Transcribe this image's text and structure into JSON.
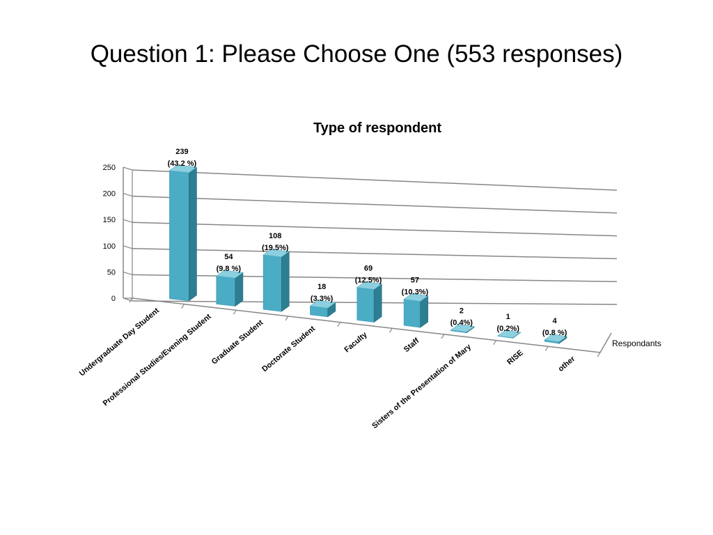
{
  "slide": {
    "title": "Question 1: Please Choose One (553 responses)"
  },
  "chart_data": {
    "type": "bar",
    "title": "Type of respondent",
    "series": [
      {
        "name": "Respondants",
        "values": [
          239,
          54,
          108,
          18,
          69,
          57,
          2,
          1,
          4
        ]
      }
    ],
    "categories": [
      "Undergraduate Day Student",
      "Professional Studies/Evening Student",
      "Graduate Student",
      "Doctorate Student",
      "Faculty",
      "Staff",
      "Sisters of the Presentation of Mary",
      "RISE",
      "other"
    ],
    "percent_labels": [
      "(43.2 %)",
      "(9.8 %)",
      "(19.5%)",
      "(3.3%)",
      "(12.5%)",
      "(10.3%)",
      "(0.4%)",
      "(0.2%)",
      "(0.8 %)"
    ],
    "y_ticks": [
      0,
      50,
      100,
      150,
      200,
      250
    ],
    "ylim": [
      0,
      250
    ],
    "grid": true,
    "legend_position": "right",
    "colors": {
      "bar_front": "#4BACC6",
      "bar_side": "#2E7E92",
      "bar_top": "#8CCFDF",
      "grid": "#868686"
    }
  }
}
